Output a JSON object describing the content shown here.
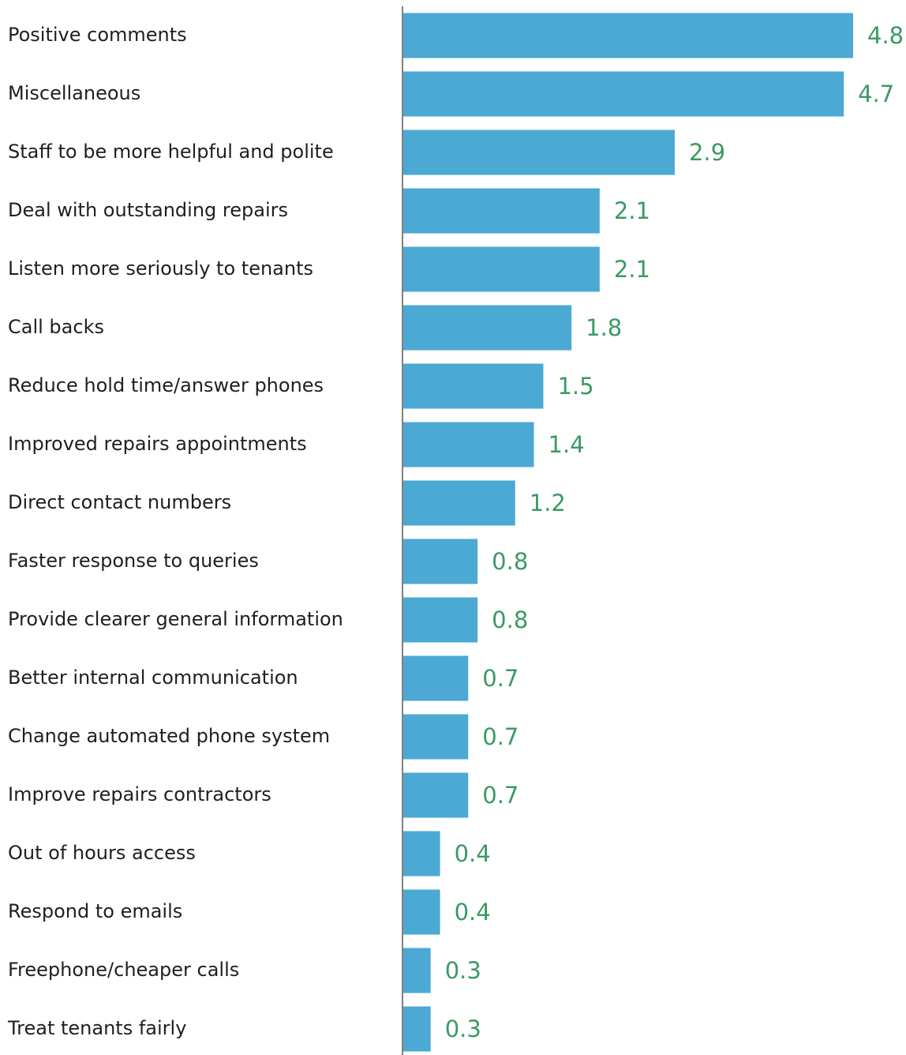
{
  "chart_data": {
    "type": "bar",
    "orientation": "horizontal",
    "categories": [
      "Positive comments",
      "Miscellaneous",
      "Staff to be more helpful and polite",
      "Deal with outstanding repairs",
      "Listen more seriously to tenants",
      "Call backs",
      "Reduce hold time/answer phones",
      "Improved repairs appointments",
      "Direct contact numbers",
      "Faster response to queries",
      "Provide clearer general information",
      "Better internal communication",
      "Change automated phone system",
      "Improve repairs contractors",
      "Out of hours access",
      "Respond to emails",
      "Freephone/cheaper calls",
      "Treat tenants fairly"
    ],
    "values": [
      4.8,
      4.7,
      2.9,
      2.1,
      2.1,
      1.8,
      1.5,
      1.4,
      1.2,
      0.8,
      0.8,
      0.7,
      0.7,
      0.7,
      0.4,
      0.4,
      0.3,
      0.3
    ],
    "value_labels": [
      "4.8",
      "4.7",
      "2.9",
      "2.1",
      "2.1",
      "1.8",
      "1.5",
      "1.4",
      "1.2",
      "0.8",
      "0.8",
      "0.7",
      "0.7",
      "0.7",
      "0.4",
      "0.4",
      "0.3",
      "0.3"
    ],
    "title": "",
    "xlabel": "",
    "ylabel": "",
    "xlim": [
      0,
      4.8
    ],
    "grid": false,
    "legend": "none",
    "colors": {
      "bar": "#4BA9D4",
      "value_label": "#3A9A63",
      "category_label": "#1F1F1F",
      "axis": "#808080"
    }
  }
}
